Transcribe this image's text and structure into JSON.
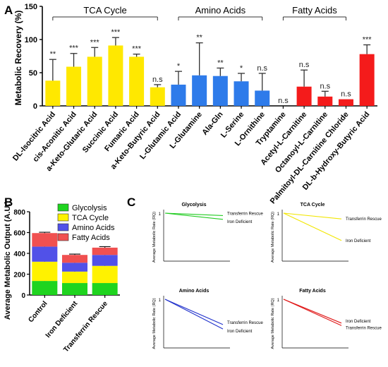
{
  "panels": {
    "A": {
      "label": "A"
    },
    "B": {
      "label": "B"
    },
    "C": {
      "label": "C"
    }
  },
  "colors": {
    "tca": "#FFE800",
    "amino": "#2E7BEA",
    "fatty": "#F41B1B",
    "glycolysis": "#1FD41F",
    "tca_b": "#FFF200",
    "amino_b": "#5151E8",
    "fatty_b": "#F05050",
    "line_glyco": "#22CC22",
    "line_tca": "#F2E600",
    "line_amino": "#2233CC",
    "line_fatty": "#E01818"
  },
  "chart_data": [
    {
      "type": "bar",
      "panel": "A",
      "ylabel": "Metabolic Recovery (%)",
      "ylim": [
        0,
        150
      ],
      "yticks": [
        "0",
        "50",
        "100",
        "150"
      ],
      "groups": [
        {
          "name": "TCA Cycle",
          "from": 0,
          "to": 5
        },
        {
          "name": "Amino Acids",
          "from": 6,
          "to": 10
        },
        {
          "name": "Fatty Acids",
          "from": 11,
          "to": 14
        }
      ],
      "categories": [
        "DL-Isocitric Acid",
        "cis-Aconitic Acid",
        "a-Keto-Glutaric Acid",
        "Succinic Acid",
        "Fumaric Acid",
        "a-Keto-Butyric Acid",
        "L-Glutamic Acid",
        "L-Glutamine",
        "Ala-Gln",
        "L-Serine",
        "L-Ornithine",
        "Tryptamine",
        "Acetyl-L-Carnitine",
        "Octanoyl-L-Carnitine",
        "Palmitoyl-DL-Carnitine Chloride",
        "DL-b-Hydroxy-Butyric Acid"
      ],
      "values": [
        38,
        59,
        74,
        91,
        74,
        28,
        32,
        46,
        45,
        37,
        23,
        0,
        29,
        14,
        10,
        78
      ],
      "errors": [
        32,
        20,
        14,
        12,
        4,
        4,
        20,
        49,
        12,
        12,
        26,
        0,
        25,
        8,
        0,
        14
      ],
      "significance": [
        "**",
        "***",
        "***",
        "***",
        "***",
        "n.s",
        "*",
        "**",
        "**",
        "*",
        "n.s",
        "n.s",
        "n.s",
        "n.s",
        "n.s",
        "***"
      ],
      "bar_groups": [
        "tca",
        "tca",
        "tca",
        "tca",
        "tca",
        "tca",
        "amino",
        "amino",
        "amino",
        "amino",
        "amino",
        "amino",
        "fatty",
        "fatty",
        "fatty",
        "fatty"
      ]
    },
    {
      "type": "bar",
      "stacked": true,
      "panel": "B",
      "ylabel": "Average Metabolic Output (A.U.)",
      "ylim": [
        0,
        800
      ],
      "yticks": [
        "0",
        "200",
        "400",
        "600",
        "800"
      ],
      "categories": [
        "Control",
        "Iron Deficient",
        "Transferrin Rescue"
      ],
      "series": [
        {
          "name": "Glycolysis",
          "color_key": "glycolysis_b",
          "values": [
            135,
            115,
            115
          ],
          "errors": [
            10,
            8,
            10
          ]
        },
        {
          "name": "TCA Cycle",
          "color_key": "tca_b",
          "values": [
            185,
            110,
            165
          ],
          "errors": [
            10,
            18,
            12
          ]
        },
        {
          "name": "Amino Acids",
          "color_key": "amino_b",
          "values": [
            145,
            85,
            105
          ],
          "errors": [
            50,
            14,
            20
          ]
        },
        {
          "name": "Fatty Acids",
          "color_key": "fatty_b",
          "values": [
            130,
            75,
            70
          ],
          "errors": [
            8,
            8,
            10
          ]
        }
      ],
      "legend": "top-right"
    },
    {
      "type": "line",
      "panel": "C",
      "subplots": [
        {
          "title": "Glycolysis",
          "ylabel": "Average Metabolic Rate (RQ)",
          "y_tick": "1",
          "color_key": "line_glyco",
          "series": [
            {
              "name": "Transferrin Rescue",
              "y": [
                1,
                0.95
              ]
            },
            {
              "name": "Iron Deficient",
              "y": [
                1,
                0.87
              ]
            }
          ],
          "ylim": [
            0,
            1
          ]
        },
        {
          "title": "TCA Cycle",
          "ylabel": "Average Metabolic Rate (RQ)",
          "y_tick": "1",
          "color_key": "line_tca",
          "series": [
            {
              "name": "Transferrin Rescue",
              "y": [
                1,
                0.88
              ]
            },
            {
              "name": "Iron Deficient",
              "y": [
                1,
                0.43
              ]
            }
          ],
          "ylim": [
            0,
            1
          ]
        },
        {
          "title": "Amino Acids",
          "ylabel": "Average Metabolic Rate (RQ)",
          "y_tick": "1",
          "color_key": "line_amino",
          "series": [
            {
              "name": "Transferrin Rescue",
              "y": [
                1,
                0.48
              ]
            },
            {
              "name": "Iron Deficient",
              "y": [
                1,
                0.39
              ]
            }
          ],
          "ylim": [
            0,
            1
          ]
        },
        {
          "title": "Fatty Acids",
          "ylabel": "Average Metabolic Rate (RQ)",
          "y_tick": "1",
          "color_key": "line_fatty",
          "series": [
            {
              "name": "Iron Deficient",
              "y": [
                1,
                0.51
              ]
            },
            {
              "name": "Transferrin Rescue",
              "y": [
                1,
                0.46
              ]
            }
          ],
          "ylim": [
            0,
            1
          ]
        }
      ]
    }
  ]
}
